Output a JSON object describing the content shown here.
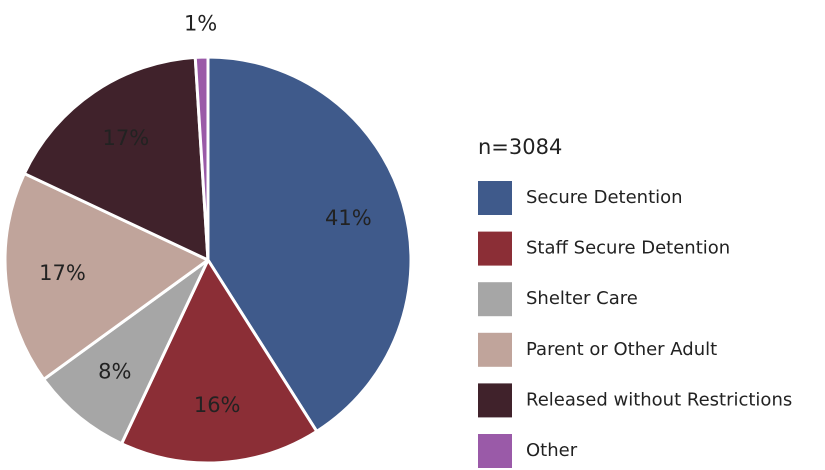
{
  "chart_data": {
    "type": "pie",
    "subtitle": "n=3084",
    "categories": [
      "Secure Detention",
      "Staff Secure Detention",
      "Shelter Care",
      "Parent or Other Adult",
      "Released without Restrictions",
      "Other"
    ],
    "values": [
      41,
      16,
      8,
      17,
      17,
      1
    ],
    "value_labels": [
      "41%",
      "16%",
      "8%",
      "17%",
      "17%",
      "1%"
    ],
    "colors": [
      "#3f5a8b",
      "#8b2e36",
      "#a6a6a6",
      "#c0a49b",
      "#40222b",
      "#9a5aa8"
    ],
    "legend": "right"
  }
}
